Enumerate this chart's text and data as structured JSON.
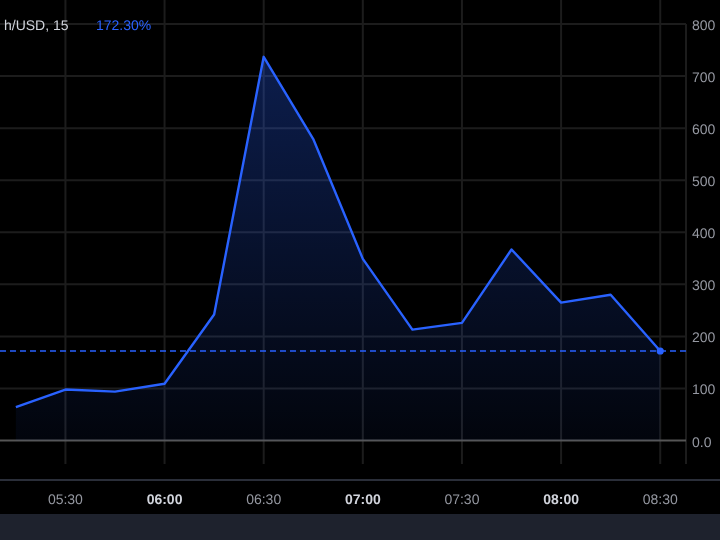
{
  "chart_data": {
    "type": "area",
    "title": "h/USD, 15",
    "annotations": [
      "172.30%"
    ],
    "x": [
      5.25,
      5.5,
      5.75,
      6,
      6.25,
      6.5,
      6.75,
      7,
      7.25,
      7.5,
      7.75,
      8,
      8.25,
      8.5
    ],
    "series": [
      {
        "color": "#2962ff",
        "values": [
          64,
          98,
          94,
          109,
          242,
          737,
          579,
          349,
          213,
          226,
          367,
          265,
          280,
          172
        ]
      }
    ],
    "xlim": [
      5.17,
      8.63
    ],
    "ylim": [
      -45,
      800
    ],
    "xticks": [
      {
        "value": 5.5,
        "label": "05:30"
      },
      {
        "value": 6,
        "label": "06:00"
      },
      {
        "value": 6.5,
        "label": "06:30"
      },
      {
        "value": 7,
        "label": "07:00"
      },
      {
        "value": 7.5,
        "label": "07:30"
      },
      {
        "value": 8,
        "label": "08:00"
      },
      {
        "value": 8.5,
        "label": "08:30"
      }
    ],
    "yticks": [
      {
        "value": 0,
        "label": "0.0"
      },
      100,
      200,
      300,
      400,
      500,
      600,
      700,
      800
    ],
    "ref_lines": [
      {
        "axis": "y",
        "value": 172,
        "color": "#2962ff",
        "line_style": "dashed"
      }
    ],
    "grid": true
  }
}
